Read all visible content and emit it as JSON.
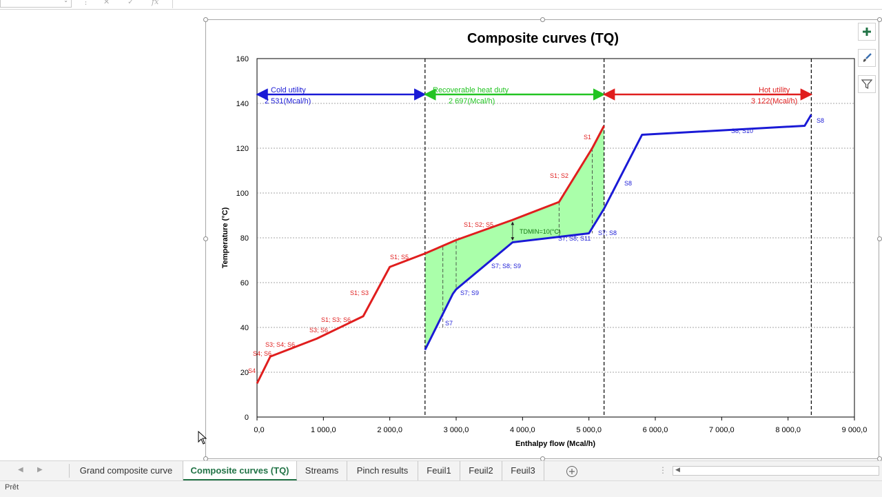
{
  "formula_bar": {
    "fx_label": "fx"
  },
  "chart": {
    "title": "Composite curves (TQ)",
    "xlabel": "Enthalpy flow (Mcal/h)",
    "ylabel": "Temperature (°C)",
    "x_ticks": [
      "0,0",
      "1 000,0",
      "2 000,0",
      "3 000,0",
      "4 000,0",
      "5 000,0",
      "6 000,0",
      "7 000,0",
      "8 000,0",
      "9 000,0"
    ],
    "y_ticks": [
      "0",
      "20",
      "40",
      "60",
      "80",
      "100",
      "120",
      "140",
      "160"
    ],
    "cold_utility_label": "Cold utility",
    "cold_utility_value": "2 531(Mcal/h)",
    "recoverable_label": "Recoverable heat duty",
    "recoverable_value": "2 697(Mcal/h)",
    "hot_utility_label": "Hot utility",
    "hot_utility_value": "3 122(Mcal/h)",
    "tdmin_label": "TDMIN=10(°C)",
    "hot_labels": [
      "S4",
      "S4; S6",
      "S3; S4; S6",
      "S3; S6",
      "S1; S3; S6",
      "S1; S3",
      "S1; S5",
      "S1; S2; S5",
      "S1; S2",
      "S1"
    ],
    "cold_labels": [
      "S7",
      "S7; S9",
      "S7; S8; S9",
      "S7; S8; S11",
      "S7; S8",
      "S8",
      "S8; S10",
      "S8"
    ]
  },
  "chart_data": {
    "type": "line",
    "title": "Composite curves (TQ)",
    "xlabel": "Enthalpy flow (Mcal/h)",
    "ylabel": "Temperature (°C)",
    "xlim": [
      0,
      9000
    ],
    "ylim": [
      0,
      160
    ],
    "grid": true,
    "series": [
      {
        "color": "#e01e1e",
        "points": [
          [
            0,
            15
          ],
          [
            200,
            27
          ],
          [
            900,
            35
          ],
          [
            1600,
            45
          ],
          [
            2000,
            67
          ],
          [
            2531,
            73
          ],
          [
            3000,
            79
          ],
          [
            3850,
            88
          ],
          [
            4550,
            96
          ],
          [
            5050,
            120
          ],
          [
            5228,
            130
          ]
        ]
      },
      {
        "color": "#1a1ad6",
        "points": [
          [
            2531,
            30
          ],
          [
            2950,
            55
          ],
          [
            3000,
            57
          ],
          [
            3850,
            78
          ],
          [
            5000,
            82
          ],
          [
            5228,
            93
          ],
          [
            5800,
            126
          ],
          [
            8250,
            130
          ],
          [
            8350,
            135
          ]
        ]
      }
    ],
    "vlines": [
      2531,
      5228,
      8350
    ]
  },
  "colors": {
    "hot": "#e01e1e",
    "cold": "#1a1ad6",
    "recover": "#22c422",
    "fill": "#aaffaa",
    "excel_green": "#217346"
  },
  "sheet_tabs": [
    "Grand composite curve",
    "Composite curves (TQ)",
    "Streams",
    "Pinch results",
    "Feuil1",
    "Feuil2",
    "Feuil3"
  ],
  "active_tab": "Composite curves (TQ)",
  "status": "Prêt",
  "icons": {
    "add_sheet": "plus-circle-icon",
    "chart_elements": "plus-icon",
    "chart_styles": "brush-icon",
    "chart_filters": "funnel-icon"
  }
}
